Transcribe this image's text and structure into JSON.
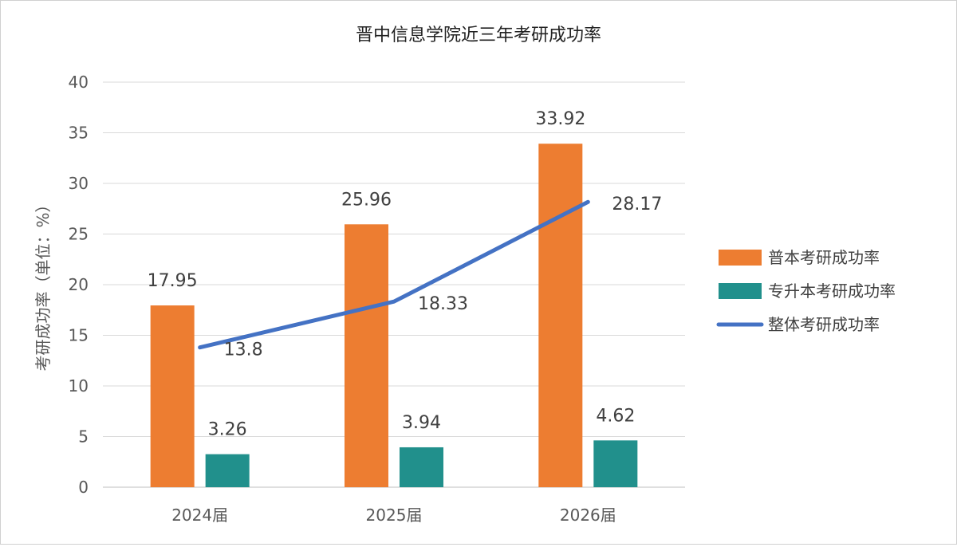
{
  "chart_data": {
    "type": "bar",
    "title": "晋中信息学院近三年考研成功率",
    "ylabel": "考研成功率（单位：%）",
    "xlabel": "",
    "categories": [
      "2024届",
      "2025届",
      "2026届"
    ],
    "ylim": [
      0,
      40
    ],
    "yticks": [
      0,
      5,
      10,
      15,
      20,
      25,
      30,
      35,
      40
    ],
    "grid": true,
    "legend_position": "right",
    "series": [
      {
        "name": "普本考研成功率",
        "type": "bar",
        "color": "#ed7d31",
        "values": [
          17.95,
          25.96,
          33.92
        ]
      },
      {
        "name": "专升本考研成功率",
        "type": "bar",
        "color": "#21908c",
        "values": [
          3.26,
          3.94,
          4.62
        ]
      },
      {
        "name": "整体考研成功率",
        "type": "line",
        "color": "#4472c4",
        "values": [
          13.8,
          18.33,
          28.17
        ]
      }
    ]
  }
}
